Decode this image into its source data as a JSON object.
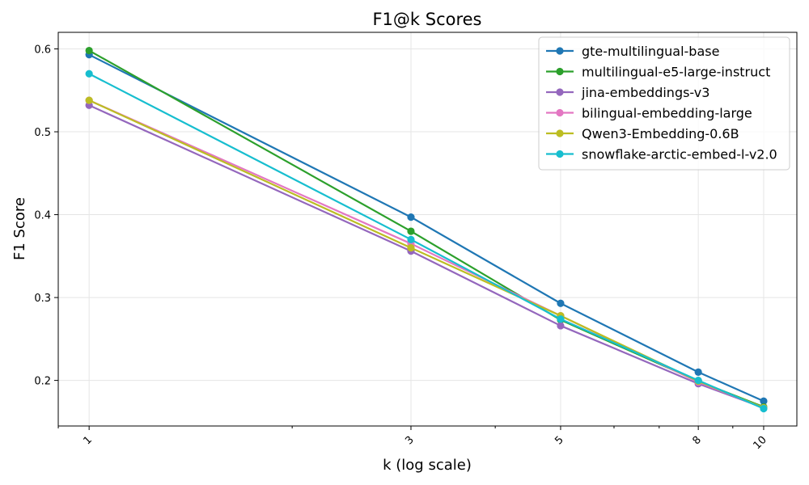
{
  "chart_data": {
    "type": "line",
    "title": "F1@k Scores",
    "xlabel": "k (log scale)",
    "ylabel": "F1 Score",
    "xscale": "log",
    "x": [
      1,
      3,
      5,
      8,
      10
    ],
    "x_tick_labels": [
      "1",
      "3",
      "5",
      "8",
      "10"
    ],
    "xlim": [
      0.9,
      11.2
    ],
    "ylim": [
      0.145,
      0.62
    ],
    "y_ticks": [
      0.2,
      0.3,
      0.4,
      0.5,
      0.6
    ],
    "y_tick_labels": [
      "0.2",
      "0.3",
      "0.4",
      "0.5",
      "0.6"
    ],
    "grid": true,
    "legend_position": "top-right",
    "series": [
      {
        "name": "gte-multilingual-base",
        "color": "#1f77b4",
        "values": [
          0.593,
          0.397,
          0.293,
          0.21,
          0.175
        ]
      },
      {
        "name": "multilingual-e5-large-instruct",
        "color": "#2ca02c",
        "values": [
          0.598,
          0.38,
          0.273,
          0.199,
          0.168
        ]
      },
      {
        "name": "jina-embeddings-v3",
        "color": "#9467bd",
        "values": [
          0.532,
          0.356,
          0.266,
          0.196,
          0.167
        ]
      },
      {
        "name": "bilingual-embedding-large",
        "color": "#e377c2",
        "values": [
          0.538,
          0.365,
          0.278,
          0.198,
          0.167
        ]
      },
      {
        "name": "Qwen3-Embedding-0.6B",
        "color": "#bcbd22",
        "values": [
          0.538,
          0.36,
          0.278,
          0.199,
          0.167
        ]
      },
      {
        "name": "snowflake-arctic-embed-l-v2.0",
        "color": "#17becf",
        "values": [
          0.57,
          0.37,
          0.274,
          0.2,
          0.166
        ]
      }
    ]
  }
}
